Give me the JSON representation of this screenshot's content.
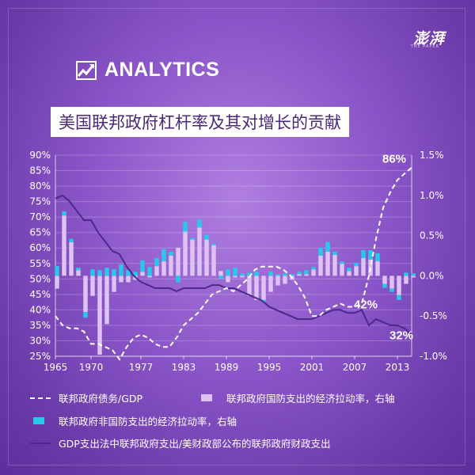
{
  "branding": {
    "logo_text": "澎湃",
    "logo_sub": "THE PAPER",
    "section": "ANALYTICS"
  },
  "title": "美国联邦政府杠杆率及其对增长的贡献",
  "colors": {
    "defense_bar": "#dcc3f2",
    "nondefense_bar": "#27c8ea",
    "debt_line": "#ffffff",
    "spending_ratio_line": "#4b2a8a"
  },
  "legend": {
    "debt": "联邦政府债务/GDP",
    "defense": "联邦政府国防支出的经济拉动率，右轴",
    "nondefense": "联邦政府非国防支出的经济拉动率，右轴",
    "ratio": "GDP支出法中联邦政府支出/美财政部公布的联邦政府财政支出"
  },
  "chart_data": {
    "type": "combo",
    "x_start": 1965,
    "x_end": 2015,
    "x_ticks": [
      "1965",
      "1970",
      "1977",
      "1983",
      "1989",
      "1995",
      "2001",
      "2007",
      "2013"
    ],
    "left_axis": {
      "ylim": [
        25,
        90
      ],
      "unit": "%",
      "ticks": [
        "90%",
        "85%",
        "80%",
        "75%",
        "70%",
        "65%",
        "60%",
        "55%",
        "50%",
        "45%",
        "40%",
        "35%",
        "30%",
        "25%"
      ]
    },
    "right_axis": {
      "ylim": [
        -1.0,
        1.5
      ],
      "unit": "%",
      "ticks": [
        "1.5%",
        "1.0%",
        "0.5%",
        "0.0%",
        "-0.5%",
        "-1.0%"
      ]
    },
    "annotations": [
      {
        "text": "86%",
        "year": 2013,
        "value": 86
      },
      {
        "text": "42%",
        "year": 2009,
        "value": 42
      },
      {
        "text": "32%",
        "year": 2014,
        "value": 32
      }
    ],
    "series": [
      {
        "name": "联邦政府债务/GDP",
        "kind": "line-dashed",
        "axis": "left",
        "points": [
          [
            1965,
            38
          ],
          [
            1966,
            35
          ],
          [
            1967,
            34
          ],
          [
            1968,
            34
          ],
          [
            1969,
            33
          ],
          [
            1970,
            29
          ],
          [
            1971,
            29
          ],
          [
            1972,
            28
          ],
          [
            1973,
            27
          ],
          [
            1974,
            24
          ],
          [
            1975,
            28
          ],
          [
            1976,
            31
          ],
          [
            1977,
            32
          ],
          [
            1978,
            31
          ],
          [
            1979,
            29
          ],
          [
            1980,
            28
          ],
          [
            1981,
            28
          ],
          [
            1982,
            31
          ],
          [
            1983,
            35
          ],
          [
            1984,
            37
          ],
          [
            1985,
            39
          ],
          [
            1986,
            42
          ],
          [
            1987,
            45
          ],
          [
            1988,
            46
          ],
          [
            1989,
            47
          ],
          [
            1990,
            46
          ],
          [
            1991,
            48
          ],
          [
            1992,
            50
          ],
          [
            1993,
            53
          ],
          [
            1994,
            54
          ],
          [
            1995,
            54
          ],
          [
            1996,
            54
          ],
          [
            1997,
            53
          ],
          [
            1998,
            51
          ],
          [
            1999,
            48
          ],
          [
            2000,
            44
          ],
          [
            2001,
            38
          ],
          [
            2002,
            38
          ],
          [
            2003,
            40
          ],
          [
            2004,
            41
          ],
          [
            2005,
            42
          ],
          [
            2006,
            41
          ],
          [
            2007,
            41
          ],
          [
            2008,
            42
          ],
          [
            2009,
            51
          ],
          [
            2010,
            63
          ],
          [
            2011,
            73
          ],
          [
            2012,
            78
          ],
          [
            2013,
            82
          ],
          [
            2014,
            84
          ],
          [
            2015,
            86
          ]
        ]
      },
      {
        "name": "GDP支出法中联邦政府支出/美财政部公布的联邦政府财政支出",
        "kind": "line-solid",
        "axis": "left",
        "points": [
          [
            1965,
            76
          ],
          [
            1966,
            77
          ],
          [
            1967,
            75
          ],
          [
            1968,
            72
          ],
          [
            1969,
            69
          ],
          [
            1970,
            69
          ],
          [
            1971,
            65
          ],
          [
            1972,
            62
          ],
          [
            1973,
            59
          ],
          [
            1974,
            58
          ],
          [
            1975,
            54
          ],
          [
            1976,
            51
          ],
          [
            1977,
            49
          ],
          [
            1978,
            48
          ],
          [
            1979,
            47
          ],
          [
            1980,
            47
          ],
          [
            1981,
            47
          ],
          [
            1982,
            46
          ],
          [
            1983,
            47
          ],
          [
            1984,
            47
          ],
          [
            1985,
            47
          ],
          [
            1986,
            47
          ],
          [
            1987,
            48
          ],
          [
            1988,
            48
          ],
          [
            1989,
            47
          ],
          [
            1990,
            47
          ],
          [
            1991,
            46
          ],
          [
            1992,
            45
          ],
          [
            1993,
            44
          ],
          [
            1994,
            43
          ],
          [
            1995,
            41
          ],
          [
            1996,
            40
          ],
          [
            1997,
            39
          ],
          [
            1998,
            38
          ],
          [
            1999,
            37
          ],
          [
            2000,
            37
          ],
          [
            2001,
            37
          ],
          [
            2002,
            38
          ],
          [
            2003,
            39
          ],
          [
            2004,
            40
          ],
          [
            2005,
            40
          ],
          [
            2006,
            39
          ],
          [
            2007,
            39
          ],
          [
            2008,
            40
          ],
          [
            2009,
            35
          ],
          [
            2010,
            37
          ],
          [
            2011,
            36
          ],
          [
            2012,
            35
          ],
          [
            2013,
            35
          ],
          [
            2014,
            34
          ],
          [
            2015,
            32
          ]
        ]
      },
      {
        "name": "联邦政府国防支出的经济拉动率，右轴",
        "kind": "bar",
        "axis": "right",
        "values": [
          [
            1965,
            -0.16
          ],
          [
            1966,
            0.75
          ],
          [
            1967,
            0.42
          ],
          [
            1968,
            0.07
          ],
          [
            1969,
            -0.45
          ],
          [
            1970,
            -0.25
          ],
          [
            1971,
            -0.98
          ],
          [
            1972,
            -0.6
          ],
          [
            1973,
            -0.2
          ],
          [
            1974,
            -0.08
          ],
          [
            1975,
            -0.08
          ],
          [
            1976,
            -0.05
          ],
          [
            1977,
            0.05
          ],
          [
            1978,
            -0.02
          ],
          [
            1979,
            0.12
          ],
          [
            1980,
            0.18
          ],
          [
            1981,
            0.25
          ],
          [
            1982,
            0.35
          ],
          [
            1983,
            0.55
          ],
          [
            1984,
            0.45
          ],
          [
            1985,
            0.6
          ],
          [
            1986,
            0.45
          ],
          [
            1987,
            0.38
          ],
          [
            1988,
            0.06
          ],
          [
            1989,
            -0.08
          ],
          [
            1990,
            -0.02
          ],
          [
            1991,
            -0.02
          ],
          [
            1992,
            -0.25
          ],
          [
            1993,
            -0.3
          ],
          [
            1994,
            -0.3
          ],
          [
            1995,
            -0.2
          ],
          [
            1996,
            -0.12
          ],
          [
            1997,
            -0.1
          ],
          [
            1998,
            -0.05
          ],
          [
            1999,
            0.02
          ],
          [
            2000,
            0.02
          ],
          [
            2001,
            0.08
          ],
          [
            2002,
            0.25
          ],
          [
            2003,
            0.3
          ],
          [
            2004,
            0.26
          ],
          [
            2005,
            0.15
          ],
          [
            2006,
            0.06
          ],
          [
            2007,
            0.12
          ],
          [
            2008,
            0.22
          ],
          [
            2009,
            0.2
          ],
          [
            2010,
            0.18
          ],
          [
            2011,
            -0.1
          ],
          [
            2012,
            -0.16
          ],
          [
            2013,
            -0.24
          ],
          [
            2014,
            -0.1
          ],
          [
            2015,
            -0.02
          ]
        ]
      },
      {
        "name": "联邦政府非国防支出的经济拉动率，右轴",
        "kind": "bar",
        "axis": "right",
        "values": [
          [
            1965,
            0.12
          ],
          [
            1966,
            0.05
          ],
          [
            1967,
            0.04
          ],
          [
            1968,
            0.03
          ],
          [
            1969,
            -0.07
          ],
          [
            1970,
            0.08
          ],
          [
            1971,
            0.07
          ],
          [
            1972,
            0.1
          ],
          [
            1973,
            0.08
          ],
          [
            1974,
            0.14
          ],
          [
            1975,
            0.07
          ],
          [
            1976,
            0.05
          ],
          [
            1977,
            0.14
          ],
          [
            1978,
            0.11
          ],
          [
            1979,
            0.1
          ],
          [
            1980,
            0.15
          ],
          [
            1981,
            0.05
          ],
          [
            1982,
            -0.08
          ],
          [
            1983,
            0.12
          ],
          [
            1984,
            0.02
          ],
          [
            1985,
            0.1
          ],
          [
            1986,
            0.06
          ],
          [
            1987,
            0.02
          ],
          [
            1988,
            -0.04
          ],
          [
            1989,
            0.08
          ],
          [
            1990,
            0.1
          ],
          [
            1991,
            0.03
          ],
          [
            1992,
            0.04
          ],
          [
            1993,
            0.05
          ],
          [
            1994,
            -0.02
          ],
          [
            1995,
            0.05
          ],
          [
            1996,
            0.02
          ],
          [
            1997,
            0.03
          ],
          [
            1998,
            0.02
          ],
          [
            1999,
            0.03
          ],
          [
            2000,
            0.05
          ],
          [
            2001,
            0.03
          ],
          [
            2002,
            0.1
          ],
          [
            2003,
            0.12
          ],
          [
            2004,
            0.04
          ],
          [
            2005,
            0.03
          ],
          [
            2006,
            0.04
          ],
          [
            2007,
            0.04
          ],
          [
            2008,
            0.1
          ],
          [
            2009,
            0.12
          ],
          [
            2010,
            0.1
          ],
          [
            2011,
            -0.05
          ],
          [
            2012,
            -0.04
          ],
          [
            2013,
            -0.06
          ],
          [
            2014,
            0.04
          ],
          [
            2015,
            0.03
          ]
        ]
      }
    ]
  }
}
